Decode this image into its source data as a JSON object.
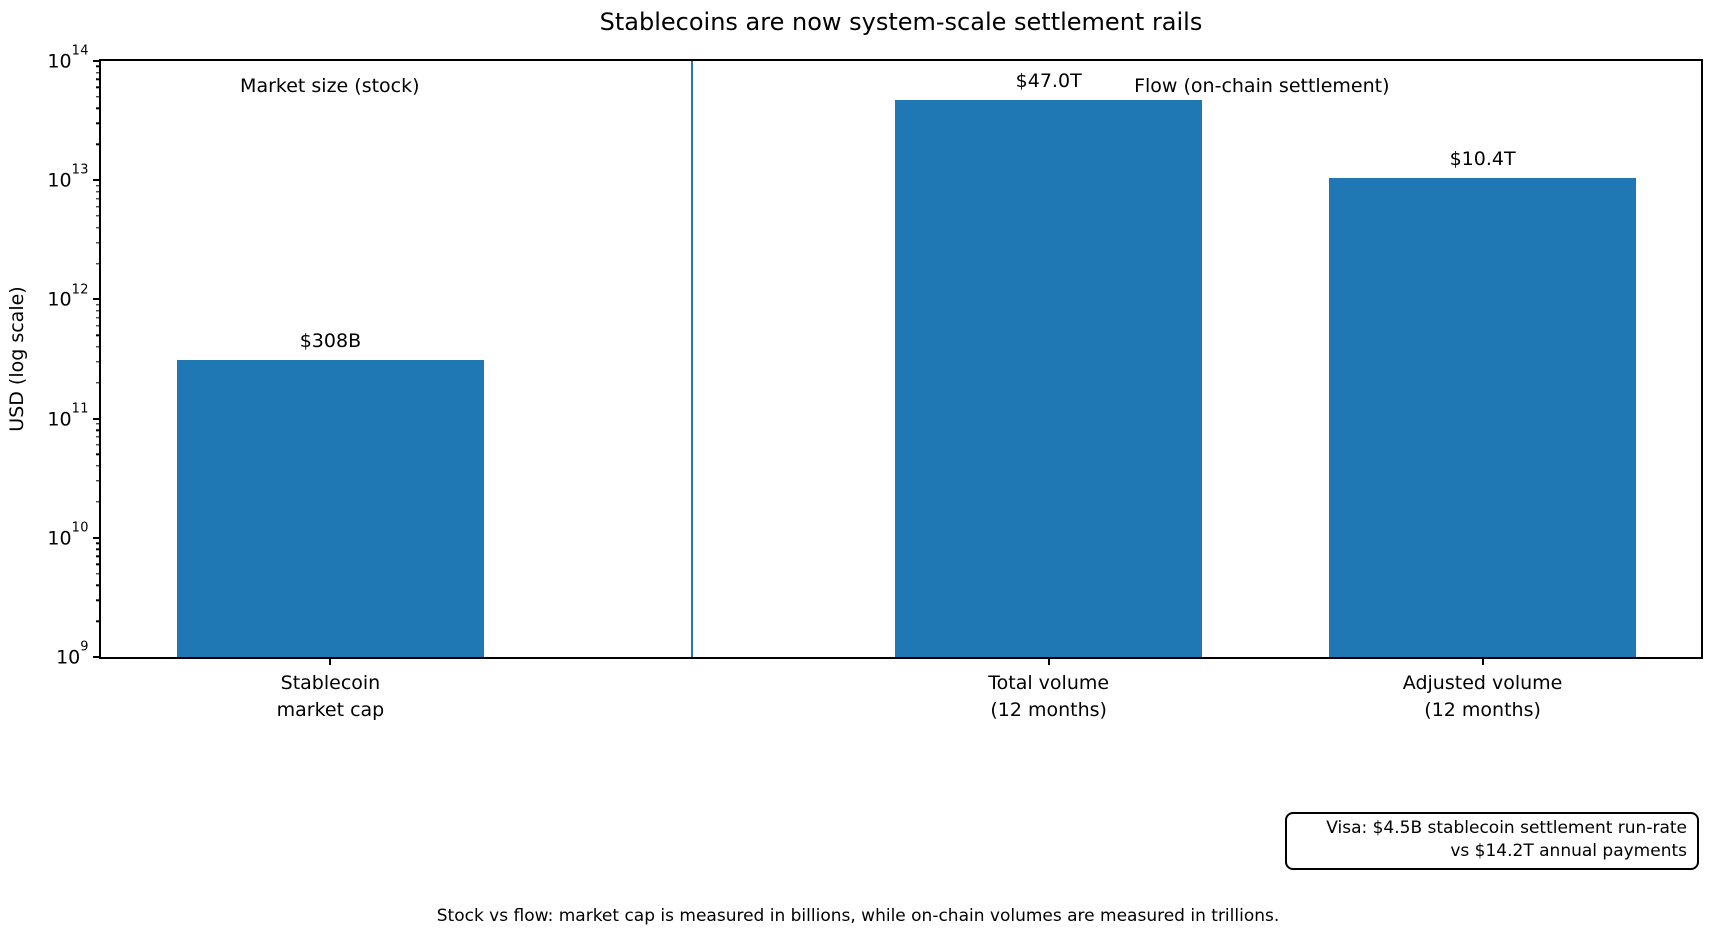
{
  "chart_data": {
    "type": "bar",
    "title": "Stablecoins are now system-scale settlement rails",
    "ylabel": "USD (log scale)",
    "yscale": "log",
    "ylim": [
      1000000000,
      100000000000000
    ],
    "grid": false,
    "legend": false,
    "categories": [
      "Stablecoin market cap",
      "Total volume (12 months)",
      "Adjusted volume (12 months)"
    ],
    "values": [
      308000000000,
      47000000000000,
      10400000000000
    ],
    "bar_labels": [
      "$308B",
      "$47.0T",
      "$10.4T"
    ],
    "bar_color": "#1f77b4",
    "divider_color": "#1f77b4",
    "xtick_lines": [
      {
        "line1": "Stablecoin",
        "line2": "market cap"
      },
      {
        "line1": "Total volume",
        "line2": "(12 months)"
      },
      {
        "line1": "Adjusted volume",
        "line2": "(12 months)"
      }
    ],
    "yticks": [
      {
        "base": "10",
        "exp": "14"
      },
      {
        "base": "10",
        "exp": "13"
      },
      {
        "base": "10",
        "exp": "12"
      },
      {
        "base": "10",
        "exp": "11"
      },
      {
        "base": "10",
        "exp": "10"
      },
      {
        "base": "10",
        "exp": "9"
      }
    ],
    "group_labels": {
      "stock": "Market size (stock)",
      "flow": "Flow (on-chain settlement)"
    },
    "annotation": {
      "line1": "Visa: $4.5B stablecoin settlement run-rate",
      "line2": "vs $14.2T annual payments"
    },
    "caption": "Stock vs flow: market cap is measured in billions, while on-chain volumes are measured in trillions."
  }
}
